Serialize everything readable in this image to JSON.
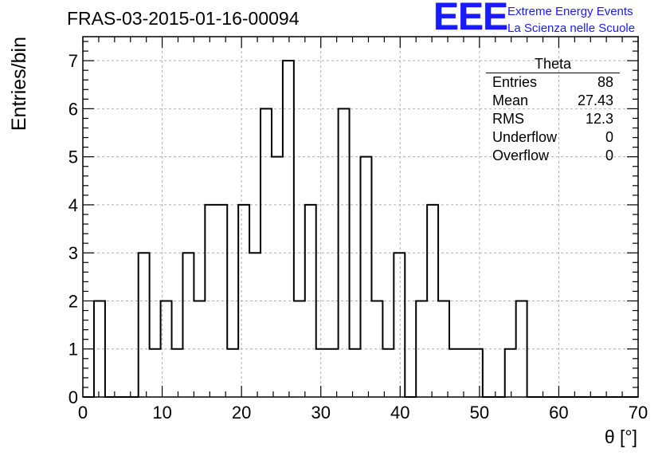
{
  "header": {
    "run_title": "FRAS-03-2015-01-16-00094"
  },
  "logo": {
    "mark": "EEE",
    "line1": "Extreme Energy Events",
    "line2": "La Scienza nelle Scuole"
  },
  "stats_box": {
    "title": "Theta",
    "rows": [
      {
        "label": "Entries",
        "value": "88"
      },
      {
        "label": "Mean",
        "value": "27.43"
      },
      {
        "label": "RMS",
        "value": "12.3"
      },
      {
        "label": "Underflow",
        "value": "0"
      },
      {
        "label": "Overflow",
        "value": "0"
      }
    ]
  },
  "chart_data": {
    "type": "bar",
    "style": "step-histogram",
    "xlabel": "θ [°]",
    "ylabel": "Entries/bin",
    "xlim": [
      0,
      70
    ],
    "ylim": [
      0,
      7.5
    ],
    "grid": true,
    "bin_width": 1.4,
    "bin_edges_start": 0,
    "counts": [
      0,
      2,
      0,
      0,
      0,
      3,
      1,
      2,
      1,
      3,
      2,
      4,
      4,
      1,
      4,
      3,
      6,
      5,
      7,
      2,
      4,
      1,
      1,
      6,
      1,
      5,
      2,
      1,
      3,
      0,
      2,
      4,
      2,
      1,
      1,
      1,
      0,
      0,
      1,
      2,
      0,
      0,
      0,
      0,
      0,
      0,
      0,
      0,
      0,
      0
    ],
    "x_ticks": [
      0,
      10,
      20,
      30,
      40,
      50,
      60,
      70
    ],
    "y_ticks": [
      0,
      1,
      2,
      3,
      4,
      5,
      6,
      7
    ],
    "line_color": "#000000",
    "grid_color": "#b0b0b0"
  }
}
